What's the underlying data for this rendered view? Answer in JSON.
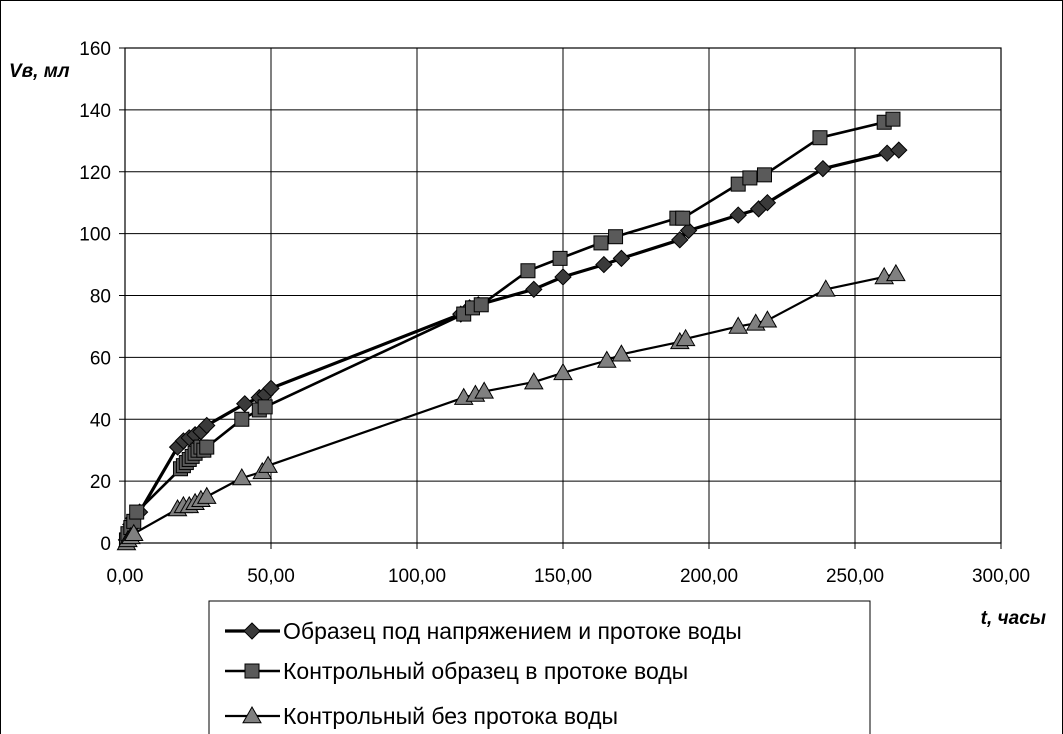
{
  "chart_data": {
    "type": "line",
    "title": "",
    "xlabel": "t, часы",
    "ylabel": "Vв, мл",
    "xlim": [
      0,
      300
    ],
    "ylim": [
      0,
      160
    ],
    "xticks": [
      0,
      50,
      100,
      150,
      200,
      250,
      300
    ],
    "xtick_labels": [
      "0,00",
      "50,00",
      "100,00",
      "150,00",
      "200,00",
      "250,00",
      "300,00"
    ],
    "yticks": [
      0,
      20,
      40,
      60,
      80,
      100,
      120,
      140,
      160
    ],
    "ytick_labels": [
      "0",
      "20",
      "40",
      "60",
      "80",
      "100",
      "120",
      "140",
      "160"
    ],
    "grid": true,
    "legend_position": "bottom-center",
    "series": [
      {
        "name": "Образец под напряжением и протоке воды",
        "marker": "diamond",
        "color": "#000000",
        "marker_color": "#3a3a3a",
        "x": [
          0.5,
          1,
          2,
          3,
          5,
          18,
          20,
          22,
          24,
          26,
          28,
          41,
          46,
          48,
          50,
          115,
          118,
          121,
          140,
          150,
          164,
          170,
          190,
          193,
          210,
          217,
          220,
          239,
          261,
          265
        ],
        "y": [
          1,
          3,
          6,
          8,
          10,
          31,
          33,
          34,
          35,
          36,
          38,
          45,
          47,
          48,
          50,
          74,
          76,
          77,
          82,
          86,
          90,
          92,
          98,
          101,
          106,
          108,
          110,
          121,
          126,
          127
        ]
      },
      {
        "name": "Контрольный образец в протоке воды",
        "marker": "square",
        "color": "#000000",
        "marker_color": "#5a5a5a",
        "x": [
          0.5,
          1,
          2,
          3,
          4,
          19,
          20,
          21,
          22,
          23,
          24,
          25,
          26,
          27,
          28,
          40,
          46,
          48,
          116,
          119,
          122,
          138,
          149,
          163,
          168,
          189,
          191,
          210,
          214,
          219,
          238,
          260,
          263
        ],
        "y": [
          1,
          3,
          5,
          7,
          10,
          24,
          25,
          26,
          27,
          28,
          29,
          30,
          31,
          30,
          31,
          40,
          43,
          44,
          74,
          76,
          77,
          88,
          92,
          97,
          99,
          105,
          105,
          116,
          118,
          119,
          131,
          136,
          137
        ]
      },
      {
        "name": "Контрольный без протока воды",
        "marker": "triangle",
        "color": "#000000",
        "marker_color": "#808080",
        "x": [
          0.5,
          1,
          2,
          3,
          18,
          20,
          22,
          24,
          26,
          28,
          40,
          47,
          49,
          116,
          120,
          123,
          140,
          150,
          165,
          170,
          190,
          192,
          210,
          216,
          220,
          240,
          260,
          264
        ],
        "y": [
          0,
          1,
          2,
          3,
          11,
          12,
          12,
          13,
          14,
          15,
          21,
          23,
          25,
          47,
          48,
          49,
          52,
          55,
          59,
          61,
          65,
          66,
          70,
          71,
          72,
          82,
          86,
          87
        ]
      }
    ]
  }
}
